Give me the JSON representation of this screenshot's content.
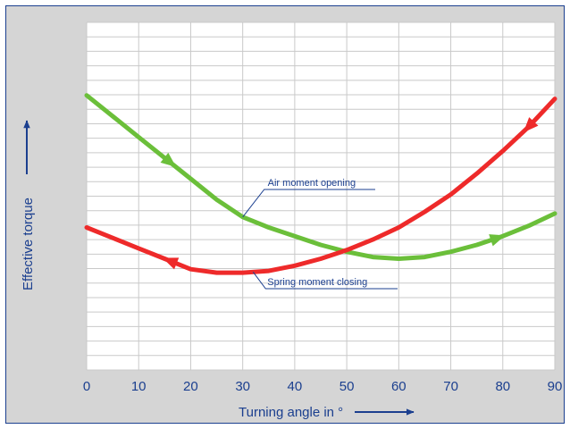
{
  "chart_data": {
    "type": "line",
    "xlabel": "Turning angle in °",
    "ylabel": "Effective torque",
    "xlim": [
      0,
      90
    ],
    "ylim": [
      0,
      100
    ],
    "x_ticks": [
      "0",
      "10",
      "20",
      "30",
      "40",
      "50",
      "60",
      "70",
      "80",
      "90"
    ],
    "y_tick_labels": "none",
    "grid": true,
    "legend": "none",
    "background": "#d5d5d5",
    "series": [
      {
        "color": "#6bbf3a",
        "x": [
          0,
          5,
          10,
          15,
          20,
          25,
          30,
          35,
          40,
          45,
          50,
          55,
          60,
          65,
          70,
          75,
          80,
          85,
          90
        ],
        "y": [
          79,
          73,
          67,
          61,
          55,
          49,
          44,
          41,
          38.5,
          36,
          34,
          32.5,
          32,
          32.5,
          34,
          36,
          38.5,
          41.5,
          45
        ]
      },
      {
        "color": "#ee2a2a",
        "x": [
          0,
          5,
          10,
          15,
          20,
          25,
          30,
          35,
          40,
          45,
          50,
          55,
          60,
          65,
          70,
          75,
          80,
          85,
          90
        ],
        "y": [
          41,
          38,
          35,
          32,
          29,
          28,
          28,
          28.5,
          30,
          32,
          34.5,
          37.5,
          41,
          45.5,
          50.5,
          56.5,
          63,
          70,
          78
        ]
      }
    ],
    "arrows": [
      {
        "series": 0,
        "x": 16,
        "dir": "forward"
      },
      {
        "series": 0,
        "x": 79,
        "dir": "forward"
      },
      {
        "series": 1,
        "x": 16,
        "dir": "backward"
      },
      {
        "series": 1,
        "x": 85,
        "dir": "backward"
      }
    ],
    "annotations": [
      {
        "text": "Air moment opening",
        "series": 0,
        "at_x": 30
      },
      {
        "text": "Spring moment closing",
        "series": 1,
        "at_x": 32
      }
    ]
  }
}
